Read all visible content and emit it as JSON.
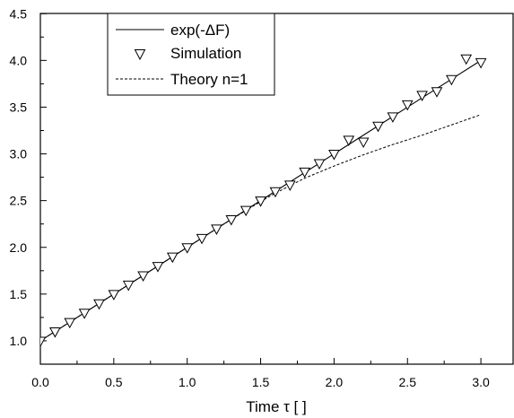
{
  "chart_data": {
    "type": "line",
    "xlabel": "Time τ [ ]",
    "ylabel": "",
    "xlim": [
      0.0,
      3.2
    ],
    "ylim": [
      0.75,
      4.5
    ],
    "x_ticks": [
      "0.0",
      "0.5",
      "1.0",
      "1.5",
      "2.0",
      "2.5",
      "3.0"
    ],
    "y_ticks": [
      "1.0",
      "1.5",
      "2.0",
      "2.5",
      "3.0",
      "3.5",
      "4.0",
      "4.5"
    ],
    "legend_position": "top-left",
    "grid": false,
    "series": [
      {
        "name": "exp(-ΔF)",
        "style": "solid-line",
        "x": [
          0.0,
          0.5,
          1.0,
          1.5,
          2.0,
          2.5,
          3.0
        ],
        "y": [
          1.0,
          1.5,
          2.0,
          2.5,
          3.0,
          3.5,
          4.0
        ]
      },
      {
        "name": "Simulation",
        "style": "open-triangle-down",
        "x": [
          0.0,
          0.1,
          0.2,
          0.3,
          0.4,
          0.5,
          0.6,
          0.7,
          0.8,
          0.9,
          1.0,
          1.1,
          1.2,
          1.3,
          1.4,
          1.5,
          1.6,
          1.7,
          1.8,
          1.9,
          2.0,
          2.1,
          2.2,
          2.3,
          2.4,
          2.5,
          2.6,
          2.7,
          2.8,
          2.9,
          3.0
        ],
        "y": [
          1.0,
          1.1,
          1.2,
          1.3,
          1.4,
          1.5,
          1.6,
          1.7,
          1.8,
          1.9,
          2.0,
          2.1,
          2.2,
          2.3,
          2.4,
          2.5,
          2.6,
          2.67,
          2.81,
          2.9,
          3.0,
          3.15,
          3.13,
          3.3,
          3.4,
          3.53,
          3.63,
          3.67,
          3.8,
          4.02,
          3.98
        ]
      },
      {
        "name": "Theory n=1",
        "style": "dashed-line",
        "x": [
          0.0,
          0.25,
          0.5,
          0.75,
          1.0,
          1.25,
          1.5,
          1.6,
          1.7,
          1.8,
          2.0,
          2.2,
          2.4,
          2.6,
          2.8,
          3.0
        ],
        "y": [
          1.0,
          1.25,
          1.5,
          1.75,
          2.0,
          2.25,
          2.49,
          2.58,
          2.66,
          2.74,
          2.87,
          2.99,
          3.1,
          3.2,
          3.31,
          3.42
        ]
      }
    ]
  }
}
